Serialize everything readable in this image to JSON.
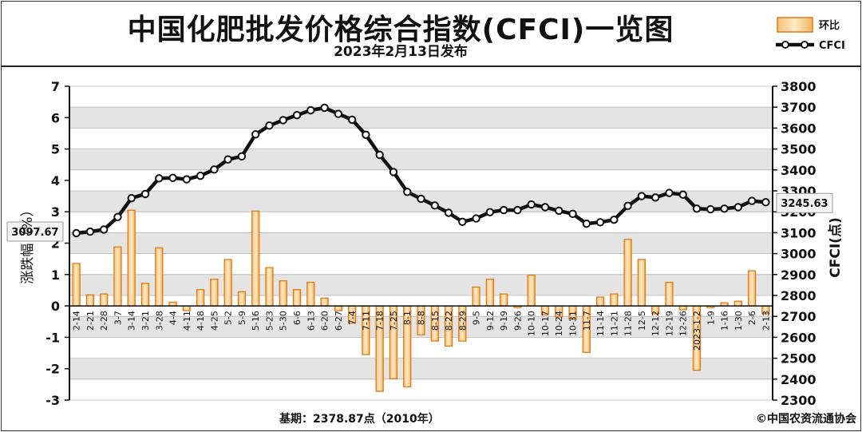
{
  "header": {
    "title": "中国化肥批发价格综合指数(CFCI)一览图",
    "subtitle": "2023年2月13日发布"
  },
  "footer": {
    "base_period": "基期：2378.87点（2010年）",
    "copyright": "©中国农资流通协会"
  },
  "chart_data": {
    "type": "bar+line",
    "categories": [
      "2-14",
      "2-21",
      "2-28",
      "3-7",
      "3-14",
      "3-21",
      "3-28",
      "4-4",
      "4-11",
      "4-18",
      "4-25",
      "5-2",
      "5-9",
      "5-16",
      "5-23",
      "5-30",
      "6-6",
      "6-13",
      "6-20",
      "6-27",
      "7-4",
      "7-11",
      "7-18",
      "7-25",
      "8-1",
      "8-8",
      "8-15",
      "8-22",
      "8-29",
      "9-5",
      "9-12",
      "9-19",
      "9-26",
      "10-10",
      "10-17",
      "10-24",
      "10-31",
      "11-7",
      "11-14",
      "11-21",
      "11-28",
      "12-5",
      "12-12",
      "12-19",
      "12-26",
      "2023-1-2",
      "1-9",
      "1-16",
      "1-30",
      "2-6",
      "2-13"
    ],
    "series": [
      {
        "name": "环比",
        "type": "bar",
        "axis": "left",
        "color": "#e8941a",
        "values": [
          1.35,
          0.35,
          0.38,
          1.88,
          3.05,
          0.72,
          1.85,
          0.12,
          -0.15,
          0.52,
          0.85,
          1.48,
          0.45,
          3.02,
          1.22,
          0.8,
          0.52,
          0.75,
          0.25,
          -0.15,
          -0.55,
          -1.55,
          -2.72,
          -2.32,
          -2.58,
          -0.92,
          -1.12,
          -1.28,
          -1.12,
          0.6,
          0.85,
          0.38,
          -0.05,
          0.98,
          -0.28,
          -0.35,
          -0.42,
          -1.48,
          0.28,
          0.38,
          2.12,
          1.48,
          -0.25,
          0.75,
          -0.12,
          -2.05,
          -0.05,
          0.1,
          0.15,
          1.12,
          -0.25
        ]
      },
      {
        "name": "CFCI",
        "type": "line",
        "axis": "right",
        "color": "#111111",
        "values": [
          3097.67,
          3105,
          3115,
          3175,
          3265,
          3285,
          3360,
          3362,
          3355,
          3372,
          3402,
          3450,
          3465,
          3570,
          3612,
          3638,
          3662,
          3685,
          3697,
          3668,
          3640,
          3568,
          3472,
          3390,
          3295,
          3262,
          3230,
          3195,
          3152,
          3168,
          3198,
          3208,
          3208,
          3235,
          3222,
          3205,
          3190,
          3143,
          3150,
          3162,
          3228,
          3275,
          3268,
          3290,
          3282,
          3215,
          3212,
          3215,
          3222,
          3252,
          3245.63
        ]
      }
    ],
    "annotations": {
      "first": "3097.67",
      "last": "3245.63"
    },
    "ylabel_left": "涨跌幅（%）",
    "ylabel_right": "CFCI(点)",
    "ylim_left": [
      -3,
      7
    ],
    "yticks_left": [
      "-3",
      "-2",
      "-1",
      "0",
      "1",
      "2",
      "3",
      "4",
      "5",
      "6",
      "7"
    ],
    "ylim_right": [
      2300,
      3800
    ],
    "yticks_right": [
      "2300",
      "2400",
      "2500",
      "2600",
      "2700",
      "2800",
      "2900",
      "3000",
      "3100",
      "3200",
      "3300",
      "3400",
      "3500",
      "3600",
      "3700",
      "3800"
    ],
    "grid": true,
    "legend": "top-right"
  }
}
